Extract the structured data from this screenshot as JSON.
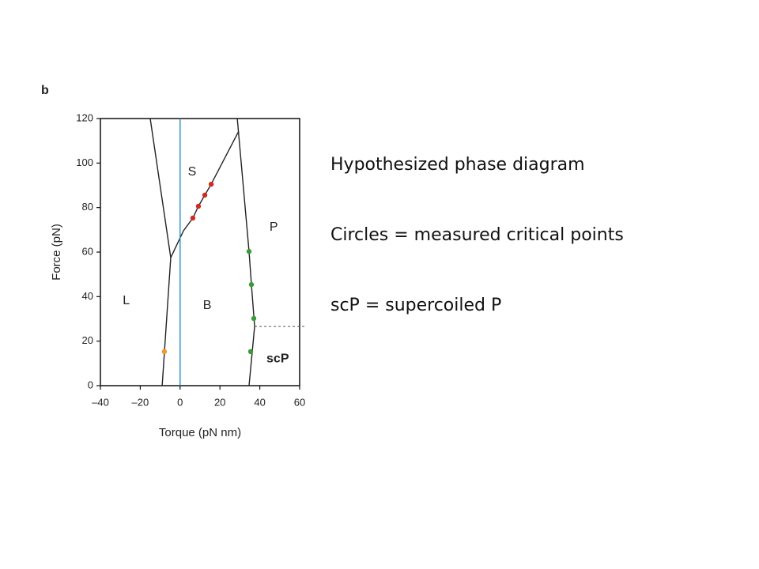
{
  "chart_data": {
    "type": "scatter",
    "panel_label": "b",
    "xlabel": "Torque (pN nm)",
    "ylabel": "Force (pN)",
    "xlim": [
      -40,
      60
    ],
    "ylim": [
      0,
      120
    ],
    "xticks": [
      {
        "value": -40,
        "label": "–40"
      },
      {
        "value": -20,
        "label": "–20"
      },
      0,
      20,
      40,
      60
    ],
    "yticks": [
      0,
      20,
      40,
      60,
      80,
      100,
      120
    ],
    "series": [
      {
        "color": "#d42a1e",
        "x": [
          6.4,
          9.2,
          12.4,
          15.6
        ],
        "values": [
          75.3,
          80.6,
          85.6,
          90.5
        ]
      },
      {
        "color": "#f0962a",
        "x": [
          -7.9
        ],
        "values": [
          15.3
        ]
      },
      {
        "color": "#3a9a3a",
        "x": [
          34.6,
          35.8,
          37,
          35.4
        ],
        "values": [
          60.3,
          45.4,
          30.2,
          15.3
        ]
      }
    ],
    "lines": [
      {
        "color": "#222222",
        "dashed": false,
        "x": [
          -15,
          -4.7,
          -9
        ],
        "values": [
          120,
          57.5,
          0
        ]
      },
      {
        "color": "#222222",
        "dashed": false,
        "x": [
          -4.7,
          1.7,
          6.4,
          9.2,
          12.4,
          15.6,
          29.4
        ],
        "values": [
          57.5,
          69.6,
          75.3,
          80.6,
          85.6,
          90.5,
          114.3
        ]
      },
      {
        "color": "#222222",
        "dashed": false,
        "x": [
          28.7,
          34.6,
          35.8,
          37.4,
          34.6
        ],
        "values": [
          120,
          60.3,
          45.4,
          26.6,
          0
        ]
      },
      {
        "color": "#555555",
        "dashed": true,
        "x": [
          37.4,
          63
        ],
        "values": [
          26.6,
          26.6
        ]
      },
      {
        "color": "#2a8fc8",
        "dashed": false,
        "x": [
          0,
          0
        ],
        "values": [
          0,
          120
        ]
      }
    ],
    "annotations": [
      {
        "text": "S",
        "x": 6,
        "y": 96,
        "bold": false
      },
      {
        "text": "P",
        "x": 47,
        "y": 71,
        "bold": false
      },
      {
        "text": "L",
        "x": -27,
        "y": 38,
        "bold": false
      },
      {
        "text": "B",
        "x": 13.6,
        "y": 36,
        "bold": false
      },
      {
        "text": "scP",
        "x": 49,
        "y": 12,
        "bold": true
      }
    ]
  },
  "notes": [
    "Hypothesized phase diagram",
    "Circles = measured critical points",
    "scP = supercoiled P"
  ]
}
